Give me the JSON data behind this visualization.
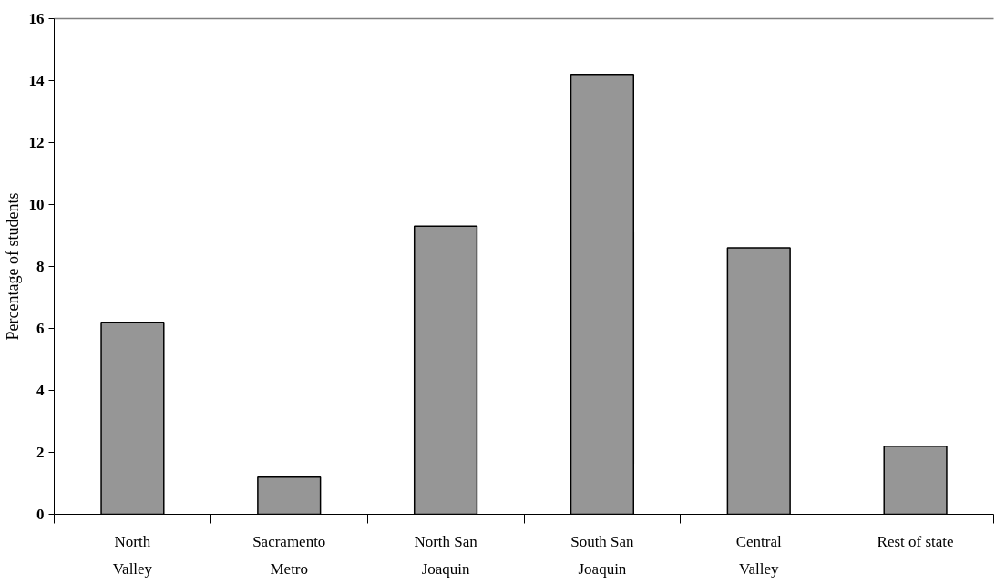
{
  "chart_data": {
    "type": "bar",
    "ylabel": "Percentage of students",
    "categories": [
      "North Valley",
      "Sacramento Metro",
      "North San Joaquin",
      "South San Joaquin",
      "Central Valley",
      "Rest of state"
    ],
    "values": [
      6.2,
      1.2,
      9.3,
      14.2,
      8.6,
      2.2
    ],
    "color": "#969696",
    "ylim": [
      0,
      16
    ],
    "yticks": [
      0,
      2,
      4,
      6,
      8,
      10,
      12,
      14,
      16
    ],
    "grid": false
  }
}
